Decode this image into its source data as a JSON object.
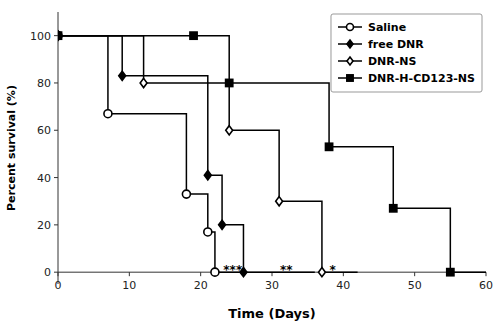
{
  "chart_data": {
    "type": "line",
    "title": "",
    "xlabel": "Time (Days)",
    "ylabel": "Percent survival (%)",
    "xlim": [
      0,
      60
    ],
    "ylim": [
      -5,
      110
    ],
    "xticks": [
      0,
      10,
      20,
      30,
      40,
      50,
      60
    ],
    "yticks": [
      0,
      20,
      40,
      60,
      80,
      100
    ],
    "grid": false,
    "legend": "upper-right",
    "series": [
      {
        "name": "Saline",
        "color": "black",
        "marker": "circle-open",
        "x": [
          0,
          7,
          7,
          18,
          18,
          21,
          21,
          22,
          22,
          26
        ],
        "values": [
          100,
          100,
          67,
          67,
          33,
          33,
          17,
          17,
          0,
          0
        ],
        "marker_x": [
          0,
          7,
          18,
          21,
          22
        ],
        "marker_values": [
          100,
          67,
          33,
          17,
          0
        ]
      },
      {
        "name": "free DNR",
        "color": "black",
        "marker": "diamond-filled",
        "x": [
          0,
          9,
          9,
          21,
          21,
          23,
          23,
          26,
          26,
          36
        ],
        "values": [
          100,
          100,
          83,
          83,
          41,
          41,
          20,
          20,
          0,
          0
        ],
        "marker_x": [
          0,
          9,
          21,
          23,
          26
        ],
        "marker_values": [
          100,
          83,
          41,
          20,
          0
        ]
      },
      {
        "name": "DNR-NS",
        "color": "black",
        "marker": "diamond-open",
        "x": [
          0,
          12,
          12,
          24,
          24,
          31,
          31,
          37,
          37,
          42
        ],
        "values": [
          100,
          100,
          80,
          80,
          60,
          60,
          30,
          30,
          0,
          0
        ],
        "marker_x": [
          0,
          12,
          24,
          31,
          37
        ],
        "marker_values": [
          100,
          80,
          60,
          30,
          0
        ]
      },
      {
        "name": "DNR-H-CD123-NS",
        "color": "black",
        "marker": "square-filled",
        "x": [
          0,
          19,
          19,
          24,
          24,
          38,
          38,
          47,
          47,
          55,
          55,
          60
        ],
        "values": [
          100,
          100,
          100,
          100,
          80,
          80,
          53,
          53,
          27,
          27,
          0,
          0
        ],
        "marker_x": [
          0,
          19,
          24,
          38,
          47,
          55
        ],
        "marker_values": [
          100,
          100,
          80,
          53,
          27,
          0
        ]
      }
    ],
    "annotations": [
      {
        "text": "***",
        "x": 24.5,
        "y": 3
      },
      {
        "text": "**",
        "x": 32,
        "y": 3
      },
      {
        "text": "*",
        "x": 38.5,
        "y": 3
      }
    ]
  }
}
